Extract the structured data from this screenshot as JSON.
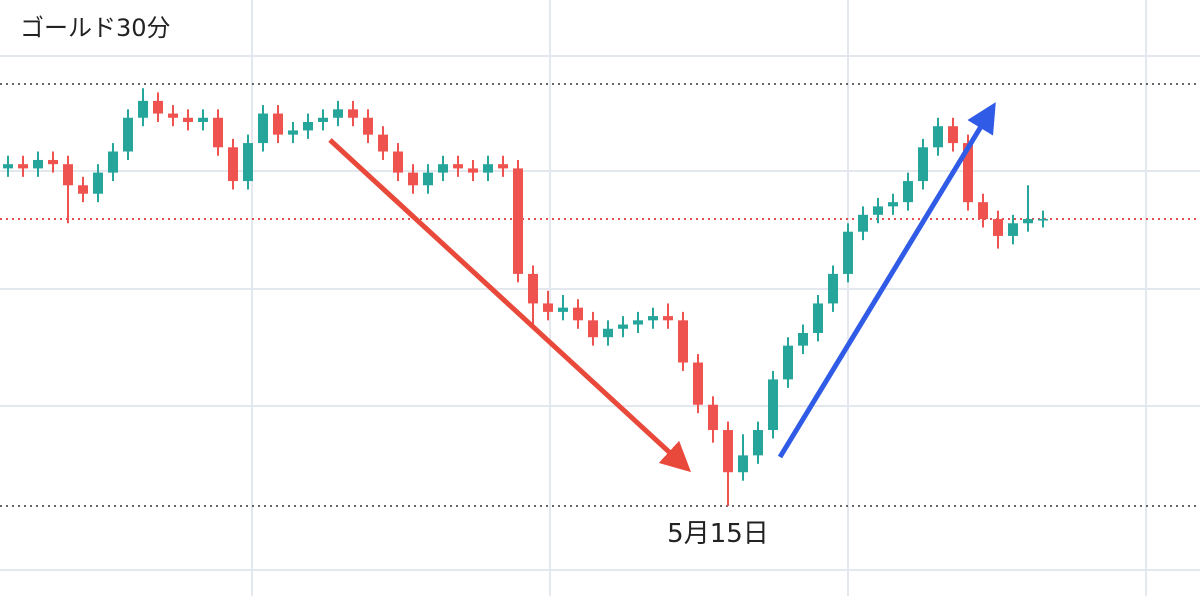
{
  "chart_data": {
    "type": "candlestick",
    "title": "ゴールド30分",
    "date_label": "5月15日",
    "ylim": [
      0,
      100
    ],
    "up_color": "#26a69a",
    "down_color": "#ef5350",
    "price_lines": [
      {
        "value": 100,
        "color": "#666666"
      },
      {
        "value": 68,
        "color": "#e05050"
      },
      {
        "value": 0,
        "color": "#666666"
      }
    ],
    "open": [
      80,
      81,
      80,
      82,
      81,
      76,
      74,
      79,
      84,
      92,
      96,
      93,
      92,
      91,
      92,
      85,
      77,
      86,
      93,
      88,
      89,
      91,
      92,
      94,
      92,
      88,
      84,
      79,
      76,
      79,
      81,
      80,
      79,
      81,
      80,
      55,
      48,
      46,
      47,
      44,
      40,
      42,
      43,
      44,
      45,
      44,
      34,
      24,
      18,
      8,
      12,
      18,
      30,
      38,
      41,
      48,
      55,
      65,
      69,
      71,
      72,
      77,
      85,
      90,
      86,
      72,
      68,
      64,
      67,
      68
    ],
    "high": [
      83,
      83,
      84,
      84,
      83,
      78,
      81,
      86,
      94,
      99,
      98,
      95,
      94,
      94,
      94,
      87,
      88,
      95,
      95,
      91,
      93,
      94,
      96,
      96,
      94,
      90,
      86,
      81,
      81,
      83,
      83,
      82,
      83,
      83,
      82,
      57,
      51,
      50,
      49,
      46,
      44,
      45,
      46,
      47,
      48,
      46,
      36,
      26,
      20,
      17,
      20,
      32,
      40,
      43,
      50,
      57,
      67,
      71,
      73,
      74,
      79,
      87,
      92,
      92,
      88,
      74,
      70,
      69,
      76,
      70
    ],
    "low": [
      78,
      78,
      78,
      79,
      67,
      72,
      72,
      77,
      82,
      90,
      91,
      90,
      89,
      89,
      83,
      75,
      75,
      84,
      86,
      86,
      87,
      89,
      90,
      90,
      86,
      82,
      77,
      74,
      74,
      77,
      78,
      77,
      77,
      78,
      53,
      42,
      44,
      44,
      42,
      38,
      38,
      40,
      41,
      42,
      42,
      32,
      22,
      15,
      0,
      6,
      10,
      16,
      28,
      36,
      39,
      46,
      53,
      63,
      67,
      69,
      70,
      75,
      83,
      84,
      70,
      66,
      61,
      62,
      65,
      66
    ],
    "close": [
      81,
      80,
      82,
      81,
      76,
      74,
      79,
      84,
      92,
      96,
      93,
      92,
      91,
      92,
      85,
      77,
      86,
      93,
      88,
      89,
      91,
      92,
      94,
      92,
      88,
      84,
      79,
      76,
      79,
      81,
      80,
      79,
      81,
      80,
      55,
      48,
      46,
      47,
      44,
      40,
      42,
      43,
      44,
      45,
      44,
      34,
      24,
      18,
      8,
      12,
      18,
      30,
      38,
      41,
      48,
      55,
      65,
      69,
      71,
      72,
      77,
      85,
      90,
      86,
      72,
      68,
      64,
      67,
      68,
      68
    ]
  }
}
